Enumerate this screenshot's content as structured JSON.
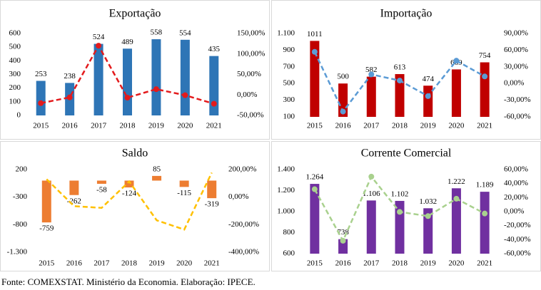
{
  "chart_data": [
    {
      "type": "bar",
      "title": "Exportação",
      "categories": [
        "2015",
        "2016",
        "2017",
        "2018",
        "2019",
        "2020",
        "2021"
      ],
      "series": [
        {
          "color": "#2e75b6",
          "values": [
            253,
            238,
            524,
            489,
            558,
            554,
            435
          ]
        },
        {
          "type": "line",
          "axis": "y2",
          "color": "#e31a1c",
          "line_style": "dashed",
          "markers": true,
          "values": [
            -20,
            -5.9,
            120.2,
            -6.7,
            14.1,
            -0.7,
            -21.5
          ]
        }
      ],
      "ylim": [
        0,
        600
      ],
      "yticks": [
        0,
        100,
        200,
        300,
        400,
        500,
        600
      ],
      "y2lim": [
        -50,
        150
      ],
      "y2ticks": [
        {
          "value": -50,
          "label": "-50,00%"
        },
        {
          "value": 0,
          "label": "0,00%"
        },
        {
          "value": 50,
          "label": "50,00%"
        },
        {
          "value": 100,
          "label": "100,00%"
        },
        {
          "value": 150,
          "label": "150,00%"
        }
      ],
      "grid": false
    },
    {
      "type": "bar",
      "title": "Importação",
      "categories": [
        "2015",
        "2016",
        "2017",
        "2018",
        "2019",
        "2020",
        "2021"
      ],
      "series": [
        {
          "color": "#c00000",
          "values": [
            1011,
            500,
            582,
            613,
            474,
            669,
            754
          ]
        },
        {
          "type": "line",
          "axis": "y2",
          "color": "#5b9bd5",
          "line_style": "dashed",
          "markers": true,
          "values": [
            57,
            -50.5,
            16.4,
            5.3,
            -22.7,
            41.1,
            12.7
          ]
        }
      ],
      "ylim": [
        100,
        1100
      ],
      "yticks": [
        100,
        300,
        500,
        700,
        900,
        {
          "value": 1100,
          "label": "1.100"
        }
      ],
      "y2lim": [
        -60,
        90
      ],
      "y2ticks": [
        {
          "value": -60,
          "label": "-60,00%"
        },
        {
          "value": -30,
          "label": "-30,00%"
        },
        {
          "value": 0,
          "label": "0,00%"
        },
        {
          "value": 30,
          "label": "30,00%"
        },
        {
          "value": 60,
          "label": "60,00%"
        },
        {
          "value": 90,
          "label": "90,00%"
        }
      ],
      "grid": false
    },
    {
      "type": "bar",
      "title": "Saldo",
      "categories": [
        "2015",
        "2016",
        "2017",
        "2018",
        "2019",
        "2020",
        "2021"
      ],
      "series": [
        {
          "color": "#ed7d31",
          "values": [
            -759,
            -262,
            -58,
            -124,
            85,
            -115,
            -319
          ]
        },
        {
          "type": "line",
          "axis": "y2",
          "color": "#ffc000",
          "line_style": "dashed",
          "markers": false,
          "values": [
            130,
            -65.5,
            -77.9,
            113.8,
            -168.5,
            -235.3,
            177.4
          ]
        }
      ],
      "ylim": [
        -1300,
        200
      ],
      "yticks": [
        {
          "value": -1300,
          "label": "-1.300"
        },
        -800,
        -300,
        200
      ],
      "y2lim": [
        -400,
        200
      ],
      "y2ticks": [
        {
          "value": -400,
          "label": "-400,00%"
        },
        {
          "value": -200,
          "label": "-200,00%"
        },
        {
          "value": 0,
          "label": "0,00%"
        },
        {
          "value": 200,
          "label": "200,00%"
        }
      ],
      "grid": false
    },
    {
      "type": "bar",
      "title": "Corrente Comercial",
      "categories": [
        "2015",
        "2016",
        "2017",
        "2018",
        "2019",
        "2020",
        "2021"
      ],
      "series": [
        {
          "color": "#7030a0",
          "values": [
            1264,
            738,
            1106,
            1102,
            1032,
            1222,
            1189
          ],
          "value_labels": [
            "1.264",
            "738",
            "1.106",
            "1.102",
            "1.032",
            "1.222",
            "1.189"
          ]
        },
        {
          "type": "line",
          "axis": "y2",
          "color": "#a9d18e",
          "line_style": "dashed",
          "markers": true,
          "values": [
            32,
            -41.6,
            49.9,
            -0.4,
            -6.4,
            18.4,
            -2.7
          ]
        }
      ],
      "ylim": [
        600,
        1400
      ],
      "yticks": [
        600,
        800,
        {
          "value": 1000,
          "label": "1.000"
        },
        {
          "value": 1200,
          "label": "1.200"
        },
        {
          "value": 1400,
          "label": "1.400"
        }
      ],
      "y2lim": [
        -60,
        60
      ],
      "y2ticks": [
        {
          "value": -60,
          "label": "-60,00%"
        },
        {
          "value": -40,
          "label": "-40,00%"
        },
        {
          "value": -20,
          "label": "-20,00%"
        },
        {
          "value": 0,
          "label": "0,00%"
        },
        {
          "value": 20,
          "label": "20,00%"
        },
        {
          "value": 40,
          "label": "40,00%"
        },
        {
          "value": 60,
          "label": "60,00%"
        }
      ],
      "grid": false
    }
  ],
  "source": "Fonte: COMEXSTAT. Ministério da Economia. Elaboração: IPECE."
}
